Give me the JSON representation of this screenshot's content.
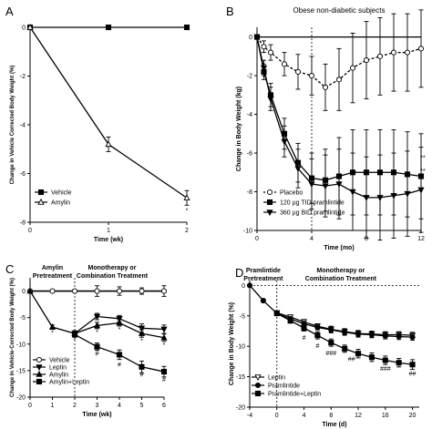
{
  "chart_data": [
    {
      "panel": "A",
      "type": "line",
      "xlabel": "Time (wk)",
      "ylabel": "Change in Vehicle Corrected Body Weight (%)",
      "x_ticks": [
        0,
        1,
        2
      ],
      "y_ticks": [
        0,
        -2,
        -4,
        -6,
        -8
      ],
      "xlim": [
        0,
        2
      ],
      "ylim": [
        -8,
        0
      ],
      "legend_position": "bottom-left",
      "series": [
        {
          "name": "Vehicle",
          "marker": "square",
          "x": [
            0,
            1,
            2
          ],
          "y": [
            0,
            0,
            0
          ]
        },
        {
          "name": "Amylin",
          "marker": "triangle-open",
          "x": [
            0,
            1,
            2
          ],
          "y": [
            0,
            -4.8,
            -7.0
          ],
          "err": [
            0,
            0.3,
            0.3
          ]
        }
      ],
      "annotations": [
        {
          "text": "*",
          "x": 2,
          "y": -7.5
        }
      ]
    },
    {
      "panel": "B",
      "type": "line",
      "subtitle": "Obese non-diabetic subjects",
      "xlabel": "Time (mo)",
      "ylabel": "Change in Body Weight (kg)",
      "x_ticks": [
        0,
        4,
        8,
        12
      ],
      "y_ticks": [
        0,
        -2,
        -4,
        -6,
        -8,
        -10
      ],
      "xlim": [
        0,
        12
      ],
      "ylim": [
        -10,
        0.5
      ],
      "legend_position": "bottom-left",
      "series": [
        {
          "name": "Placebo",
          "marker": "circle-open",
          "dashed": true,
          "x": [
            0,
            0.5,
            1,
            2,
            3,
            4,
            5,
            6,
            7,
            8,
            9,
            10,
            11,
            12
          ],
          "y": [
            0,
            -0.5,
            -0.8,
            -1.4,
            -1.8,
            -2.0,
            -2.6,
            -2.2,
            -1.6,
            -1.2,
            -1.0,
            -0.8,
            -0.8,
            -0.6
          ],
          "err": [
            0,
            0.3,
            0.4,
            0.6,
            0.9,
            1.0,
            1.2,
            1.6,
            1.8,
            2.0,
            2.0,
            2.0,
            2.0,
            2.0
          ]
        },
        {
          "name": "120 µg TID pramlintide",
          "marker": "square",
          "x": [
            0,
            0.5,
            1,
            2,
            3,
            4,
            5,
            6,
            7,
            8,
            9,
            10,
            11,
            12
          ],
          "y": [
            0,
            -1.8,
            -3.0,
            -5.0,
            -6.5,
            -7.3,
            -7.4,
            -7.2,
            -7.0,
            -7.0,
            -7.0,
            -7.0,
            -7.1,
            -7.2
          ],
          "err": [
            0,
            0.4,
            0.6,
            0.8,
            1.0,
            1.3,
            1.6,
            2.0,
            2.2,
            2.2,
            2.2,
            2.2,
            2.2,
            2.2
          ]
        },
        {
          "name": "360 µg BID pramlintide",
          "marker": "triangle-down",
          "x": [
            0,
            0.5,
            1,
            2,
            3,
            4,
            5,
            6,
            7,
            8,
            9,
            10,
            11,
            12
          ],
          "y": [
            0,
            -1.6,
            -3.2,
            -5.4,
            -6.8,
            -7.6,
            -7.7,
            -7.6,
            -8.0,
            -8.3,
            -8.3,
            -8.2,
            -8.1,
            -7.9
          ],
          "err": [
            0,
            0.4,
            0.6,
            0.8,
            1.0,
            1.3,
            1.6,
            1.8,
            2.0,
            2.1,
            2.2,
            2.2,
            2.2,
            2.2
          ]
        }
      ],
      "annotations": [
        {
          "text": "**",
          "x": 12,
          "y": -6.2
        },
        {
          "text": "**",
          "x": 12,
          "y": -6.9
        }
      ],
      "vline_x": 4
    },
    {
      "panel": "C",
      "type": "line",
      "xlabel": "Time (wk)",
      "ylabel": "Change in Vehicle-Corrected Body Weight (%)",
      "x_ticks": [
        0,
        1,
        2,
        3,
        4,
        5,
        6
      ],
      "y_ticks": [
        0,
        -5,
        -10,
        -15,
        -20
      ],
      "xlim": [
        0,
        6
      ],
      "ylim": [
        -20,
        2.5
      ],
      "legend_position": "bottom-left",
      "region_labels": [
        "Amylin Pretreatment",
        "Monotherapy or Combination Treatment"
      ],
      "vline_x": 2,
      "series": [
        {
          "name": "Vehicle",
          "marker": "circle-open",
          "x": [
            0,
            1,
            2,
            3,
            4,
            5,
            6
          ],
          "y": [
            0,
            0,
            0,
            0,
            0,
            0,
            0
          ],
          "err": [
            0,
            0,
            0,
            1.0,
            0.8,
            0.6,
            1.0
          ]
        },
        {
          "name": "Leptin",
          "marker": "triangle-down",
          "x": [
            2,
            3,
            4,
            5,
            6
          ],
          "y": [
            -8.0,
            -4.8,
            -5.2,
            -7.0,
            -7.2
          ],
          "err": [
            0.5,
            0.6,
            0.6,
            0.8,
            0.8
          ]
        },
        {
          "name": "Amylin",
          "marker": "triangle",
          "x": [
            0,
            1,
            2,
            3,
            4,
            5,
            6
          ],
          "y": [
            0,
            -6.8,
            -8.0,
            -6.5,
            -6.0,
            -8.0,
            -8.8
          ],
          "err": [
            0,
            0.4,
            0.5,
            0.6,
            0.6,
            0.7,
            0.7
          ]
        },
        {
          "name": "Amylin+Leptin",
          "marker": "square",
          "x": [
            2,
            3,
            4,
            5,
            6
          ],
          "y": [
            -8.2,
            -10.5,
            -12.0,
            -14.3,
            -15.2
          ],
          "err": [
            0.5,
            0.7,
            0.9,
            1.1,
            1.0
          ]
        }
      ],
      "annotations": [
        {
          "text": "*",
          "x": 1,
          "y": -7.7
        },
        {
          "text": "*",
          "x": 2,
          "y": -9.1
        },
        {
          "text": "*",
          "x": 3,
          "y": -7.6
        },
        {
          "text": "*",
          "x": 4,
          "y": -7.1
        },
        {
          "text": "*",
          "x": 5,
          "y": -9.3
        },
        {
          "text": "*",
          "x": 6,
          "y": -10.0
        },
        {
          "text": "#",
          "x": 3,
          "y": -11.7
        },
        {
          "text": "#",
          "x": 4,
          "y": -13.7
        },
        {
          "text": "#",
          "x": 5,
          "y": -15.6
        },
        {
          "text": "#",
          "x": 6,
          "y": -16.6
        }
      ]
    },
    {
      "panel": "D",
      "type": "line",
      "xlabel": "Time (d)",
      "ylabel": "Change in Body Weight (%)",
      "x_ticks": [
        -4,
        0,
        4,
        8,
        12,
        16,
        20
      ],
      "y_ticks": [
        0,
        -5,
        -10,
        -15,
        -20
      ],
      "xlim": [
        -4,
        21
      ],
      "ylim": [
        -20,
        0.8
      ],
      "legend_position": "bottom-left",
      "region_labels": [
        "Pramlintide Pretreatment",
        "Monotherapy or Combination Treatment"
      ],
      "vline_x": 0,
      "hline_y": 0,
      "series": [
        {
          "name": "Leptin",
          "marker": "triangle-down-open",
          "x": [
            0,
            2,
            4,
            6,
            8,
            10,
            12,
            14,
            16,
            18,
            20
          ],
          "y": [
            -4.5,
            -5.2,
            -6.0,
            -6.7,
            -7.2,
            -7.6,
            -7.9,
            -8.0,
            -8.1,
            -8.1,
            -8.2
          ],
          "err": [
            0.3,
            0.3,
            0.4,
            0.4,
            0.5,
            0.5,
            0.5,
            0.5,
            0.5,
            0.5,
            0.5
          ]
        },
        {
          "name": "Pramlintide",
          "marker": "circle",
          "x": [
            -4,
            -2,
            0,
            2,
            4,
            6,
            8,
            10,
            12,
            14,
            16,
            18,
            20
          ],
          "y": [
            0,
            -2.5,
            -4.6,
            -5.5,
            -6.3,
            -6.9,
            -7.3,
            -7.7,
            -8.0,
            -8.1,
            -8.3,
            -8.4,
            -8.5
          ],
          "err": [
            0,
            0.3,
            0.3,
            0.3,
            0.4,
            0.4,
            0.5,
            0.5,
            0.5,
            0.5,
            0.5,
            0.5,
            0.5
          ]
        },
        {
          "name": "Pramlintide+Leptin",
          "marker": "square",
          "x": [
            0,
            2,
            4,
            6,
            8,
            10,
            12,
            14,
            16,
            18,
            20
          ],
          "y": [
            -4.6,
            -5.8,
            -7.0,
            -8.2,
            -9.4,
            -10.4,
            -11.2,
            -11.8,
            -12.3,
            -12.7,
            -13.0
          ],
          "err": [
            0.3,
            0.4,
            0.5,
            0.6,
            0.6,
            0.6,
            0.7,
            0.7,
            0.7,
            0.7,
            0.8
          ]
        }
      ],
      "annotations": [
        {
          "text": "#",
          "x": 4,
          "y": -8.5
        },
        {
          "text": "#",
          "x": 6,
          "y": -9.8
        },
        {
          "text": "###",
          "x": 8,
          "y": -11.0
        },
        {
          "text": "##",
          "x": 11,
          "y": -12.0
        },
        {
          "text": "###",
          "x": 16,
          "y": -13.6
        },
        {
          "text": "##",
          "x": 20,
          "y": -14.4
        }
      ]
    }
  ]
}
